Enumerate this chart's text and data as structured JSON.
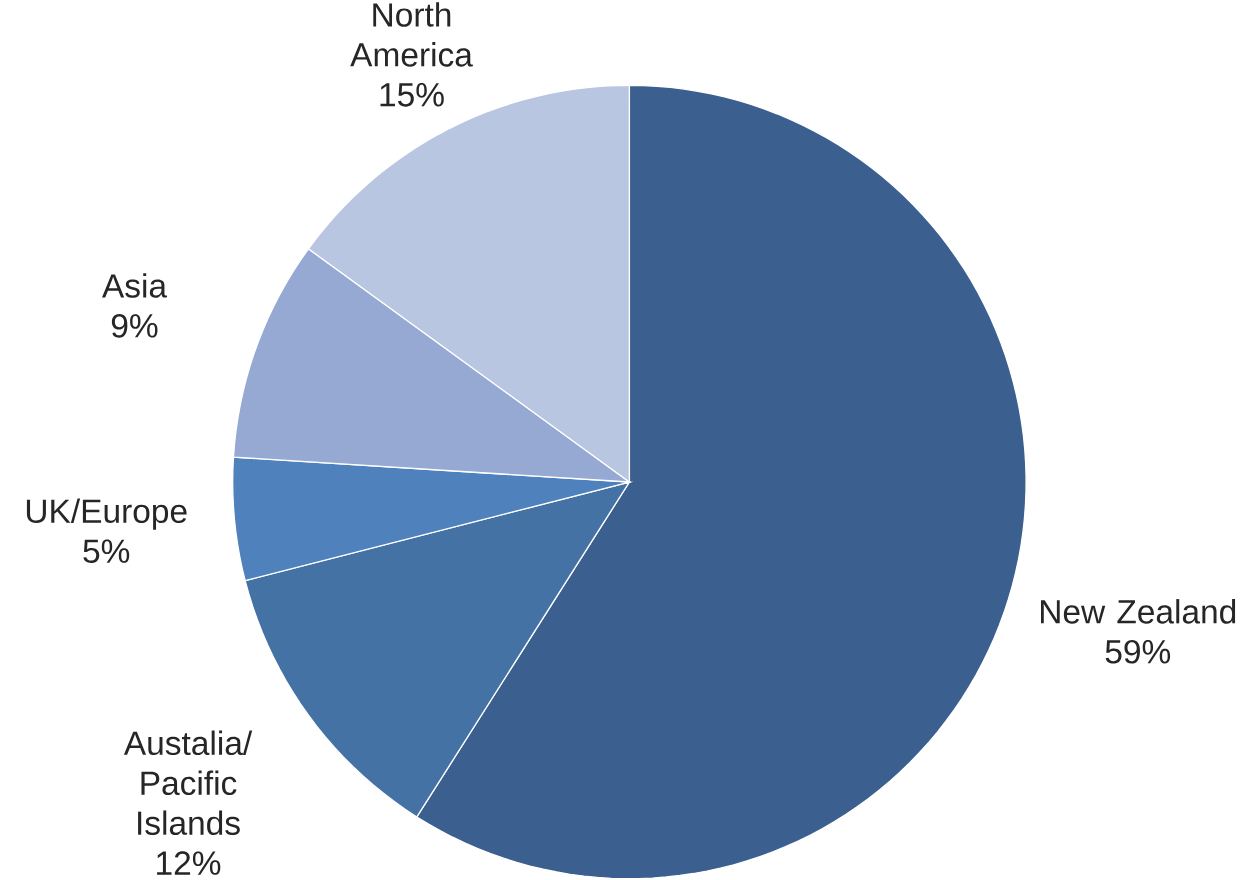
{
  "chart_data": {
    "type": "pie",
    "categories": [
      "New Zealand",
      "Austalia/ Pacific Islands",
      "UK/Europe",
      "Asia",
      "North America"
    ],
    "values": [
      59,
      12,
      5,
      9,
      15
    ],
    "value_labels": [
      "59%",
      "12%",
      "5%",
      "9%",
      "15%"
    ],
    "colors": [
      "#3b5f8f",
      "#4572a5",
      "#4f81bd",
      "#95a9d3",
      "#b9c6e1"
    ]
  }
}
